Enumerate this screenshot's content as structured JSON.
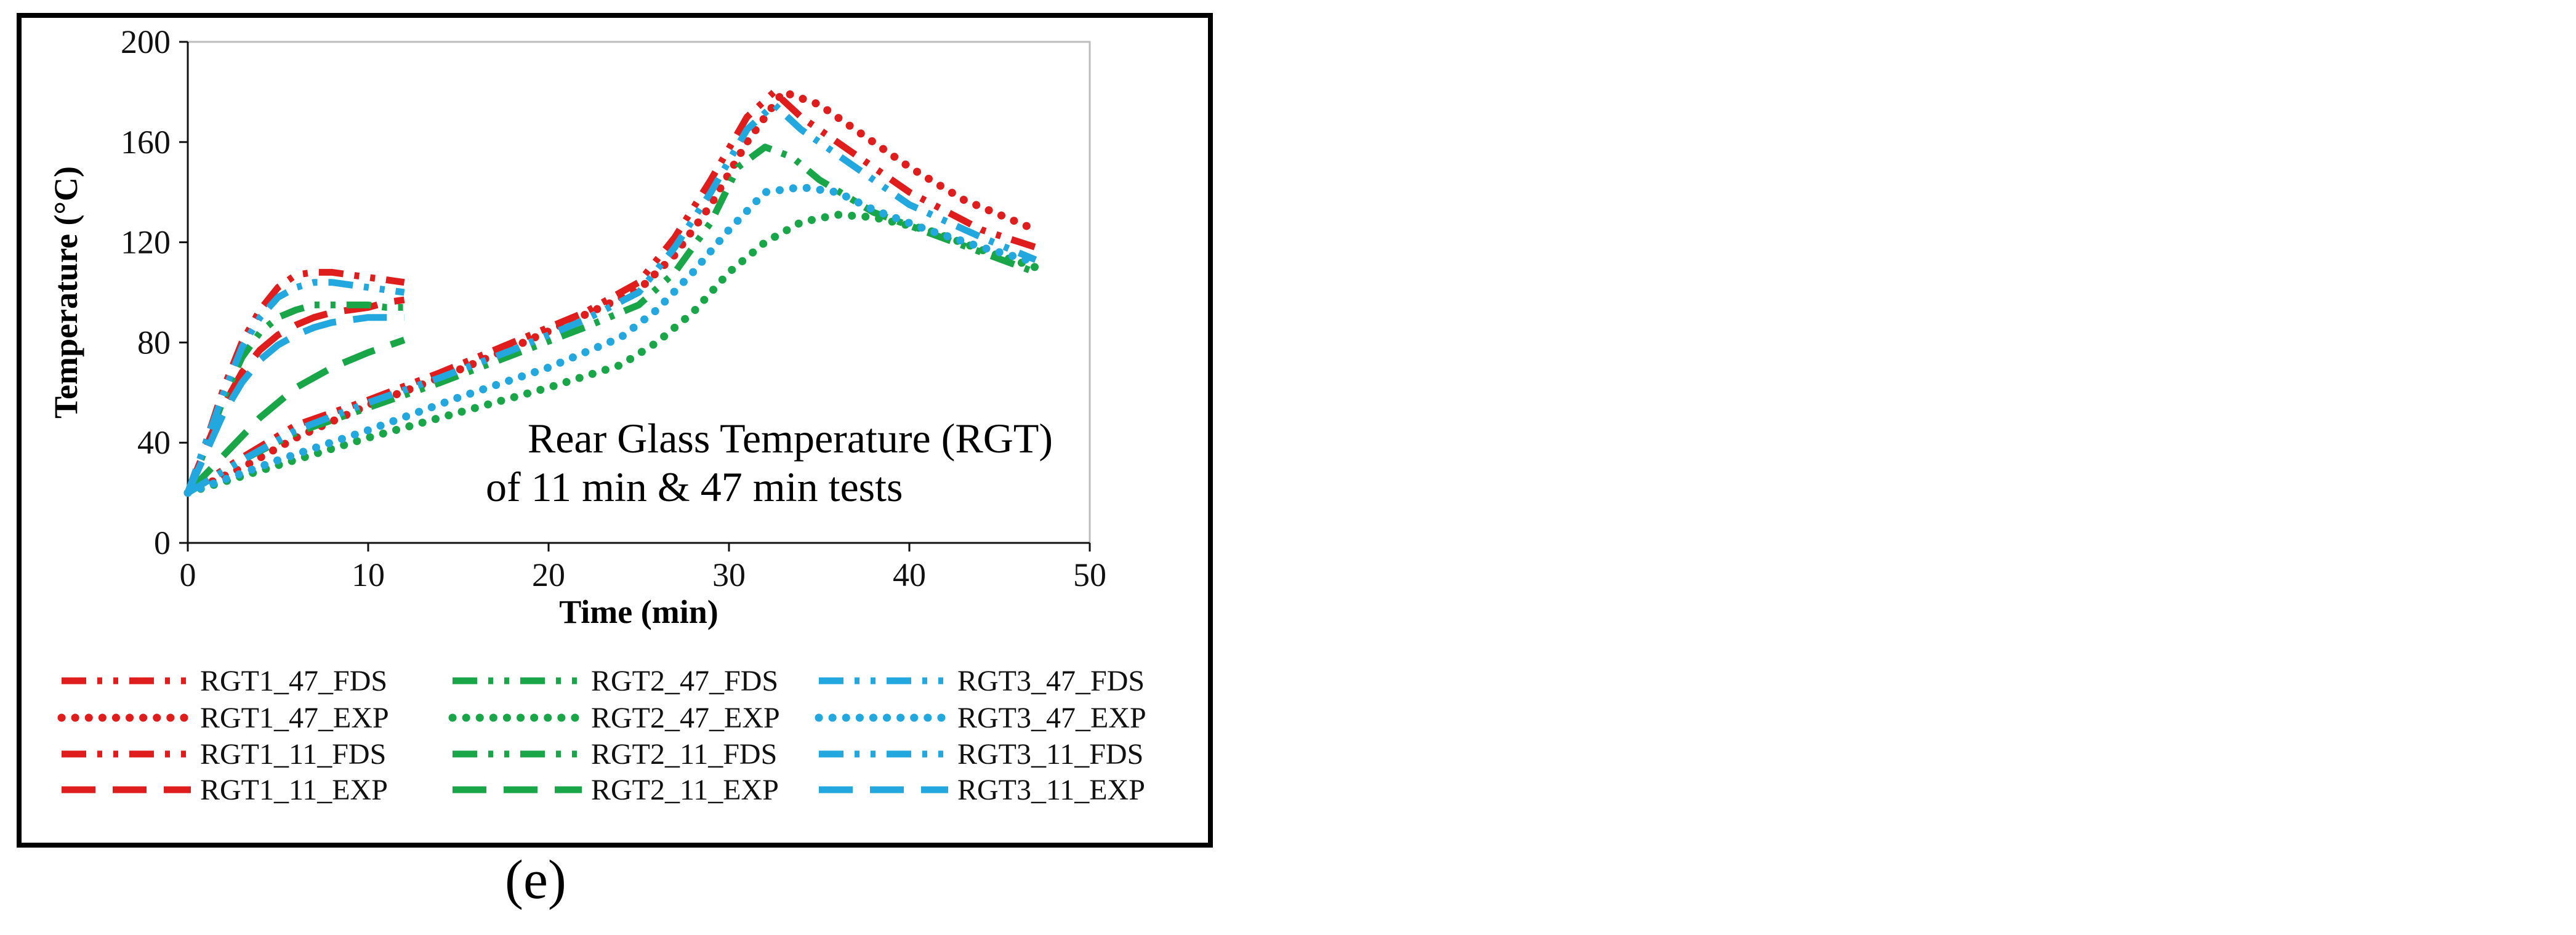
{
  "panel_label": "(e)",
  "colors": {
    "RGT1": "#e01d1d",
    "RGT2": "#19a648",
    "RGT3": "#22a7df"
  },
  "chart_data": {
    "type": "line",
    "title": "",
    "annotation": [
      "Rear Glass Temperature (RGT)",
      "of 11 min & 47 min tests"
    ],
    "xlabel": "Time (min)",
    "ylabel": "Temperature (°C)",
    "xlim": [
      0,
      50
    ],
    "ylim": [
      0,
      200
    ],
    "xticks": [
      0,
      10,
      20,
      30,
      40,
      50
    ],
    "yticks": [
      0,
      40,
      80,
      120,
      160,
      200
    ],
    "grid": false,
    "legend_position": "bottom",
    "series": [
      {
        "name": "RGT1_47_FDS",
        "group": "RGT1",
        "style": "dashdot",
        "x": [
          0,
          3,
          6,
          10,
          14,
          18,
          22,
          25,
          27,
          29,
          31,
          32.5,
          34,
          37,
          40,
          44,
          47
        ],
        "y": [
          20,
          34,
          47,
          57,
          68,
          80,
          92,
          104,
          122,
          145,
          170,
          180,
          170,
          155,
          140,
          125,
          118
        ]
      },
      {
        "name": "RGT1_47_EXP",
        "group": "RGT1",
        "style": "dotted",
        "x": [
          0,
          3,
          6,
          10,
          14,
          18,
          22,
          25,
          27,
          29,
          31,
          33,
          35,
          37,
          40,
          43,
          47
        ],
        "y": [
          20,
          30,
          42,
          55,
          66,
          78,
          91,
          101,
          115,
          135,
          160,
          180,
          175,
          165,
          150,
          137,
          125
        ]
      },
      {
        "name": "RGT1_11_FDS",
        "group": "RGT1",
        "style": "dashdot",
        "x": [
          0,
          1,
          2,
          3,
          4,
          5,
          6,
          7,
          8,
          9,
          10,
          11,
          12
        ],
        "y": [
          20,
          40,
          62,
          80,
          93,
          102,
          107,
          108,
          108,
          107,
          106,
          105,
          104
        ]
      },
      {
        "name": "RGT1_11_EXP",
        "group": "RGT1",
        "style": "dashed",
        "x": [
          0,
          1,
          2,
          3,
          4,
          5,
          6,
          7,
          8,
          9,
          10,
          11,
          12
        ],
        "y": [
          20,
          38,
          55,
          68,
          77,
          83,
          87,
          90,
          92,
          93,
          94,
          96,
          97
        ]
      },
      {
        "name": "RGT2_47_FDS",
        "group": "RGT2",
        "style": "dashdot",
        "x": [
          0,
          3,
          6,
          10,
          14,
          18,
          22,
          25,
          27,
          29,
          30.5,
          32,
          33.5,
          35,
          38,
          41,
          44,
          47
        ],
        "y": [
          20,
          33,
          44,
          54,
          64,
          75,
          86,
          95,
          108,
          128,
          150,
          158,
          154,
          145,
          132,
          124,
          116,
          108
        ]
      },
      {
        "name": "RGT2_47_EXP",
        "group": "RGT2",
        "style": "dotted",
        "x": [
          0,
          5,
          10,
          15,
          20,
          24,
          26,
          28,
          30,
          32,
          34,
          36,
          38,
          41,
          44,
          47
        ],
        "y": [
          20,
          31,
          42,
          52,
          62,
          71,
          80,
          92,
          108,
          120,
          128,
          131,
          130,
          125,
          117,
          110
        ]
      },
      {
        "name": "RGT2_11_FDS",
        "group": "RGT2",
        "style": "dashdot",
        "x": [
          0,
          1,
          2,
          3,
          4,
          5,
          6,
          7,
          8,
          9,
          10,
          11,
          12
        ],
        "y": [
          20,
          38,
          58,
          74,
          84,
          90,
          93,
          95,
          95,
          95,
          95,
          94,
          94
        ]
      },
      {
        "name": "RGT2_11_EXP",
        "group": "RGT2",
        "style": "dashed",
        "x": [
          0,
          2,
          4,
          6,
          8,
          10,
          12
        ],
        "y": [
          20,
          35,
          50,
          62,
          70,
          76,
          81
        ]
      },
      {
        "name": "RGT3_47_FDS",
        "group": "RGT3",
        "style": "dashdot",
        "x": [
          0,
          3,
          6,
          10,
          14,
          18,
          22,
          25,
          27,
          29,
          31,
          32.5,
          34,
          37,
          40,
          44,
          47
        ],
        "y": [
          20,
          33,
          45,
          56,
          66,
          77,
          89,
          100,
          118,
          140,
          165,
          175,
          165,
          150,
          135,
          122,
          113
        ]
      },
      {
        "name": "RGT3_47_EXP",
        "group": "RGT3",
        "style": "dotted",
        "x": [
          0,
          5,
          10,
          15,
          20,
          24,
          26,
          28,
          30,
          32,
          34,
          36,
          38,
          41,
          44,
          47
        ],
        "y": [
          20,
          33,
          45,
          58,
          70,
          82,
          93,
          108,
          125,
          140,
          142,
          140,
          133,
          125,
          118,
          112
        ]
      },
      {
        "name": "RGT3_11_FDS",
        "group": "RGT3",
        "style": "dashdot",
        "x": [
          0,
          1,
          2,
          3,
          4,
          5,
          6,
          7,
          8,
          9,
          10,
          11,
          12
        ],
        "y": [
          20,
          40,
          60,
          78,
          90,
          98,
          102,
          104,
          104,
          103,
          102,
          101,
          100
        ]
      },
      {
        "name": "RGT3_11_EXP",
        "group": "RGT3",
        "style": "dashed",
        "x": [
          0,
          1,
          2,
          3,
          4,
          5,
          6,
          7,
          8,
          9,
          10,
          11,
          12
        ],
        "y": [
          20,
          36,
          52,
          64,
          73,
          79,
          83,
          86,
          88,
          89,
          90,
          90,
          90
        ]
      }
    ],
    "legend_order": [
      [
        "RGT1_47_FDS",
        "RGT2_47_FDS",
        "RGT3_47_FDS"
      ],
      [
        "RGT1_47_EXP",
        "RGT2_47_EXP",
        "RGT3_47_EXP"
      ],
      [
        "RGT1_11_FDS",
        "RGT2_11_FDS",
        "RGT3_11_FDS"
      ],
      [
        "RGT1_11_EXP",
        "RGT2_11_EXP",
        "RGT3_11_EXP"
      ]
    ]
  }
}
